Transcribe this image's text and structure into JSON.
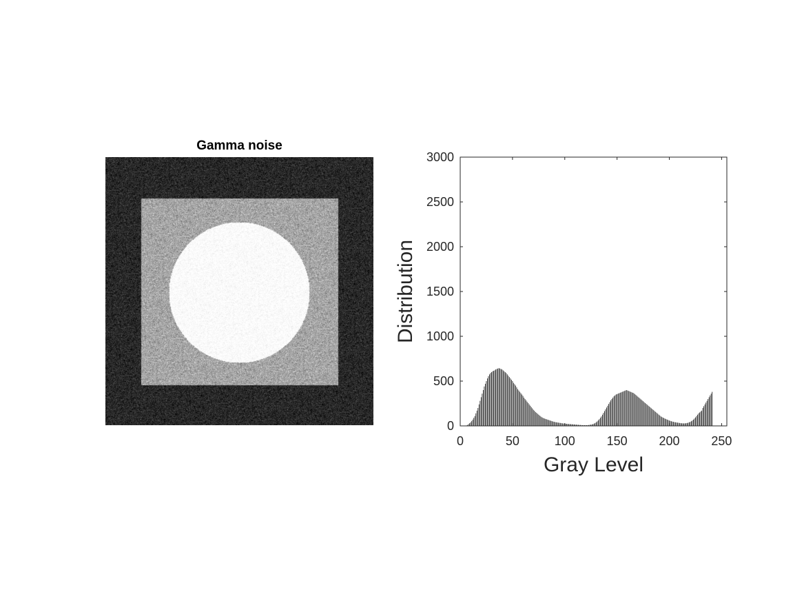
{
  "image_panel": {
    "title": "Gamma noise",
    "description_levels": {
      "background_gray": 40,
      "square_gray": 165,
      "circle_gray": 252
    }
  },
  "chart_data": {
    "type": "bar",
    "title": "",
    "xlabel": "Gray Level",
    "ylabel": "Distribution",
    "xlim": [
      0,
      255
    ],
    "ylim": [
      0,
      3000
    ],
    "xticks": [
      0,
      50,
      100,
      150,
      200,
      250
    ],
    "yticks": [
      0,
      500,
      1000,
      1500,
      2000,
      2500,
      3000
    ],
    "xtick_labels": [
      "0",
      "50",
      "100",
      "150",
      "200",
      "250"
    ],
    "ytick_labels": [
      "0",
      "500",
      "1000",
      "1500",
      "2000",
      "2500",
      "3000"
    ],
    "bar_color": "#1a1a1a",
    "series": [
      {
        "name": "histogram",
        "x_start": 0,
        "values": [
          0,
          0,
          0,
          0,
          0,
          0,
          5,
          10,
          20,
          30,
          40,
          55,
          70,
          90,
          110,
          140,
          170,
          200,
          240,
          280,
          320,
          360,
          400,
          440,
          470,
          500,
          530,
          555,
          575,
          590,
          600,
          610,
          615,
          620,
          630,
          635,
          640,
          645,
          640,
          635,
          630,
          620,
          610,
          600,
          590,
          575,
          560,
          545,
          530,
          515,
          500,
          480,
          465,
          450,
          430,
          410,
          395,
          380,
          365,
          350,
          335,
          315,
          300,
          285,
          270,
          255,
          240,
          225,
          210,
          195,
          180,
          168,
          155,
          145,
          135,
          125,
          115,
          105,
          97,
          90,
          85,
          80,
          76,
          72,
          68,
          64,
          60,
          56,
          52,
          48,
          45,
          42,
          40,
          38,
          36,
          34,
          32,
          30,
          28,
          26,
          25,
          24,
          23,
          22,
          21,
          20,
          19,
          18,
          17,
          16,
          15,
          14,
          13,
          12,
          11,
          10,
          9,
          8,
          8,
          8,
          8,
          8,
          8,
          10,
          12,
          14,
          16,
          20,
          25,
          32,
          40,
          50,
          62,
          75,
          90,
          105,
          125,
          145,
          165,
          185,
          205,
          225,
          245,
          265,
          285,
          300,
          315,
          330,
          340,
          350,
          355,
          360,
          365,
          370,
          375,
          380,
          385,
          390,
          395,
          400,
          395,
          390,
          385,
          380,
          375,
          370,
          365,
          355,
          345,
          335,
          325,
          315,
          305,
          295,
          285,
          275,
          265,
          255,
          245,
          235,
          225,
          215,
          205,
          195,
          185,
          175,
          165,
          155,
          145,
          135,
          125,
          115,
          105,
          98,
          92,
          86,
          80,
          75,
          70,
          65,
          60,
          56,
          52,
          48,
          45,
          42,
          40,
          38,
          36,
          34,
          32,
          30,
          29,
          28,
          28,
          28,
          30,
          32,
          35,
          40,
          45,
          52,
          60,
          70,
          82,
          95,
          110,
          125,
          140,
          150,
          160,
          170,
          200,
          220,
          240,
          260,
          280,
          300,
          320,
          340,
          360,
          380
        ]
      }
    ]
  }
}
